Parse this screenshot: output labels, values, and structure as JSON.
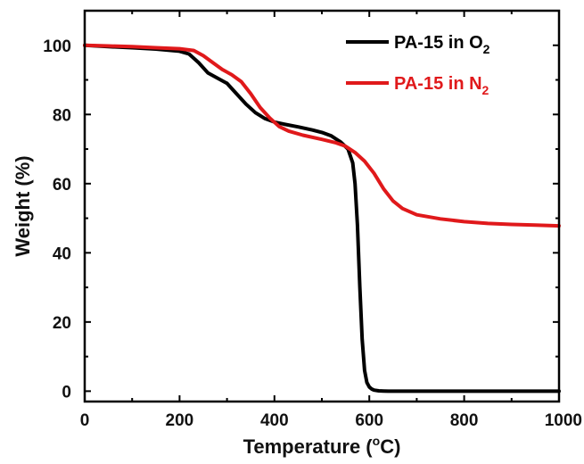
{
  "chart_data": {
    "type": "line",
    "xlabel": "Temperature (°C)",
    "xlabel_parts": [
      "Temperature (",
      "o",
      "C)"
    ],
    "ylabel": "Weight (%)",
    "xlim": [
      0,
      1000
    ],
    "ylim": [
      -3,
      110
    ],
    "xticks": [
      0,
      200,
      400,
      600,
      800,
      1000
    ],
    "yticks": [
      0,
      20,
      40,
      60,
      80,
      100
    ],
    "xtick_labels": [
      "0",
      "200",
      "400",
      "600",
      "800",
      "1000"
    ],
    "ytick_labels": [
      "0",
      "20",
      "40",
      "60",
      "80",
      "100"
    ],
    "grid": false,
    "legend_position": "top-right",
    "series": [
      {
        "name": "PA-15 in O2",
        "label_main": "PA-15 in O",
        "label_sub": "2",
        "color": "#000000",
        "x": [
          0,
          50,
          100,
          150,
          200,
          220,
          240,
          260,
          280,
          300,
          320,
          340,
          360,
          380,
          400,
          420,
          450,
          480,
          500,
          520,
          540,
          555,
          565,
          570,
          575,
          580,
          585,
          590,
          595,
          600,
          605,
          610,
          620,
          630,
          640,
          700,
          800,
          900,
          1000
        ],
        "y": [
          100,
          99.6,
          99.3,
          98.9,
          98.3,
          97.5,
          95,
          92,
          90.5,
          89,
          86,
          83,
          80.5,
          78.8,
          77.8,
          77.2,
          76.4,
          75.5,
          74.8,
          73.8,
          72,
          70,
          66,
          60,
          48,
          30,
          15,
          6,
          2.5,
          1.2,
          0.6,
          0.3,
          0.1,
          0.05,
          0,
          0,
          0,
          0,
          0
        ]
      },
      {
        "name": "PA-15 in N2",
        "label_main": "PA-15 in N",
        "label_sub": "2",
        "color": "#e0191b",
        "x": [
          0,
          50,
          100,
          150,
          200,
          230,
          250,
          270,
          290,
          310,
          330,
          350,
          370,
          390,
          410,
          430,
          460,
          500,
          530,
          550,
          570,
          590,
          610,
          630,
          650,
          670,
          700,
          750,
          800,
          850,
          900,
          950,
          1000
        ],
        "y": [
          100,
          99.8,
          99.6,
          99.3,
          99,
          98.5,
          97,
          95,
          93,
          91.5,
          89.5,
          86,
          82,
          79,
          76.5,
          75.2,
          74,
          72.8,
          71.8,
          70.8,
          69,
          66.5,
          63,
          58.5,
          55,
          52.8,
          51,
          49.8,
          49,
          48.5,
          48.2,
          48,
          47.8
        ]
      }
    ]
  }
}
